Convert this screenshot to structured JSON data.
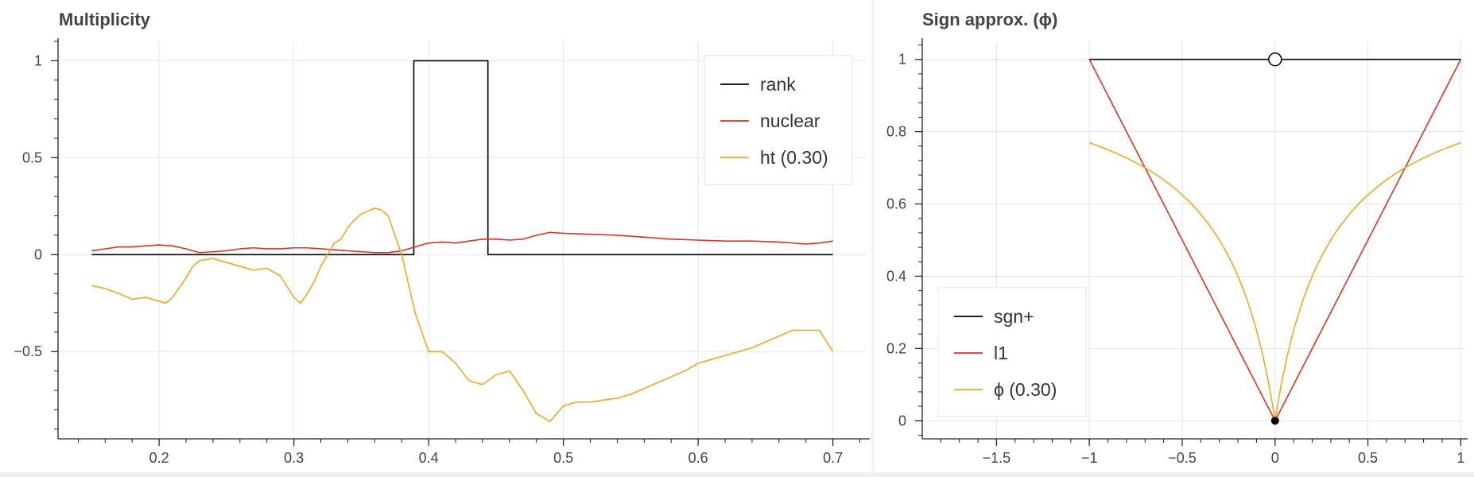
{
  "chart_data": [
    {
      "type": "line",
      "title": "Multiplicity",
      "xlim": [
        0.125,
        0.725
      ],
      "ylim": [
        -0.95,
        1.1
      ],
      "x_ticks": [
        0.2,
        0.3,
        0.4,
        0.5,
        0.6,
        0.7
      ],
      "x_tick_labels": [
        "0.2",
        "0.3",
        "0.4",
        "0.5",
        "0.6",
        "0.7"
      ],
      "y_ticks": [
        -0.5,
        0,
        0.5,
        1
      ],
      "y_tick_labels": [
        "−0.5",
        "0",
        "0.5",
        "1"
      ],
      "grid": true,
      "legend_position": "top-right",
      "series": [
        {
          "name": "rank",
          "color": "#000000",
          "x": [
            0.15,
            0.389,
            0.389,
            0.444,
            0.444,
            0.7
          ],
          "y": [
            0,
            0,
            1,
            1,
            0,
            0
          ]
        },
        {
          "name": "nuclear",
          "color": "#e03020",
          "x": [
            0.15,
            0.16,
            0.17,
            0.18,
            0.19,
            0.2,
            0.21,
            0.22,
            0.23,
            0.24,
            0.25,
            0.26,
            0.27,
            0.28,
            0.29,
            0.3,
            0.31,
            0.32,
            0.33,
            0.34,
            0.35,
            0.36,
            0.37,
            0.38,
            0.39,
            0.4,
            0.41,
            0.42,
            0.43,
            0.44,
            0.45,
            0.46,
            0.47,
            0.48,
            0.49,
            0.5,
            0.52,
            0.54,
            0.56,
            0.58,
            0.6,
            0.62,
            0.64,
            0.66,
            0.68,
            0.69,
            0.7
          ],
          "y": [
            0.02,
            0.03,
            0.04,
            0.04,
            0.045,
            0.05,
            0.045,
            0.03,
            0.01,
            0.015,
            0.02,
            0.03,
            0.035,
            0.03,
            0.03,
            0.035,
            0.035,
            0.03,
            0.025,
            0.02,
            0.015,
            0.01,
            0.01,
            0.02,
            0.04,
            0.06,
            0.065,
            0.06,
            0.07,
            0.08,
            0.08,
            0.075,
            0.08,
            0.1,
            0.115,
            0.11,
            0.105,
            0.1,
            0.09,
            0.08,
            0.075,
            0.07,
            0.07,
            0.065,
            0.055,
            0.06,
            0.07
          ]
        },
        {
          "name": "ht (0.30)",
          "color": "#f5a623",
          "x": [
            0.15,
            0.16,
            0.17,
            0.18,
            0.19,
            0.2,
            0.205,
            0.21,
            0.22,
            0.225,
            0.23,
            0.24,
            0.25,
            0.26,
            0.27,
            0.28,
            0.29,
            0.3,
            0.305,
            0.31,
            0.315,
            0.32,
            0.33,
            0.335,
            0.34,
            0.345,
            0.35,
            0.36,
            0.365,
            0.37,
            0.38,
            0.39,
            0.4,
            0.41,
            0.42,
            0.43,
            0.44,
            0.45,
            0.46,
            0.47,
            0.48,
            0.49,
            0.5,
            0.51,
            0.52,
            0.53,
            0.54,
            0.55,
            0.56,
            0.57,
            0.58,
            0.59,
            0.6,
            0.62,
            0.64,
            0.66,
            0.67,
            0.68,
            0.69,
            0.7
          ],
          "y": [
            -0.16,
            -0.175,
            -0.2,
            -0.23,
            -0.22,
            -0.24,
            -0.25,
            -0.22,
            -0.12,
            -0.06,
            -0.03,
            -0.02,
            -0.04,
            -0.06,
            -0.08,
            -0.07,
            -0.11,
            -0.22,
            -0.25,
            -0.2,
            -0.14,
            -0.06,
            0.06,
            0.08,
            0.14,
            0.18,
            0.21,
            0.24,
            0.23,
            0.2,
            0.0,
            -0.3,
            -0.5,
            -0.5,
            -0.56,
            -0.65,
            -0.67,
            -0.62,
            -0.6,
            -0.7,
            -0.82,
            -0.86,
            -0.78,
            -0.76,
            -0.76,
            -0.75,
            -0.74,
            -0.72,
            -0.69,
            -0.66,
            -0.63,
            -0.6,
            -0.56,
            -0.52,
            -0.48,
            -0.42,
            -0.39,
            -0.39,
            -0.39,
            -0.5
          ]
        }
      ]
    },
    {
      "type": "line",
      "title": "Sign approx. (ϕ)",
      "xlim": [
        -1.9,
        1.02
      ],
      "ylim": [
        -0.05,
        1.05
      ],
      "x_ticks": [
        -1.5,
        -1,
        -0.5,
        0,
        0.5,
        1
      ],
      "x_tick_labels": [
        "−1.5",
        "−1",
        "−0.5",
        "0",
        "0.5",
        "1"
      ],
      "y_ticks": [
        0,
        0.2,
        0.4,
        0.6,
        0.8,
        1
      ],
      "y_tick_labels": [
        "0",
        "0.2",
        "0.4",
        "0.6",
        "0.8",
        "1"
      ],
      "grid": true,
      "legend_position": "bottom-left",
      "series": [
        {
          "name": "sgn+",
          "color": "#000000",
          "x": [
            -1,
            1
          ],
          "y": [
            1,
            1
          ]
        },
        {
          "name": "l1",
          "color": "#e03020",
          "x": [
            -1,
            0,
            1
          ],
          "y": [
            1,
            0,
            1
          ]
        },
        {
          "name": "ϕ (0.30)",
          "color": "#f5a623",
          "function": "|x| / (|x| + 0.30)",
          "x_range": [
            -1,
            1
          ]
        }
      ],
      "markers": [
        {
          "x": 0,
          "y": 1,
          "style": "open"
        },
        {
          "x": 0,
          "y": 0,
          "style": "filled"
        }
      ]
    }
  ]
}
